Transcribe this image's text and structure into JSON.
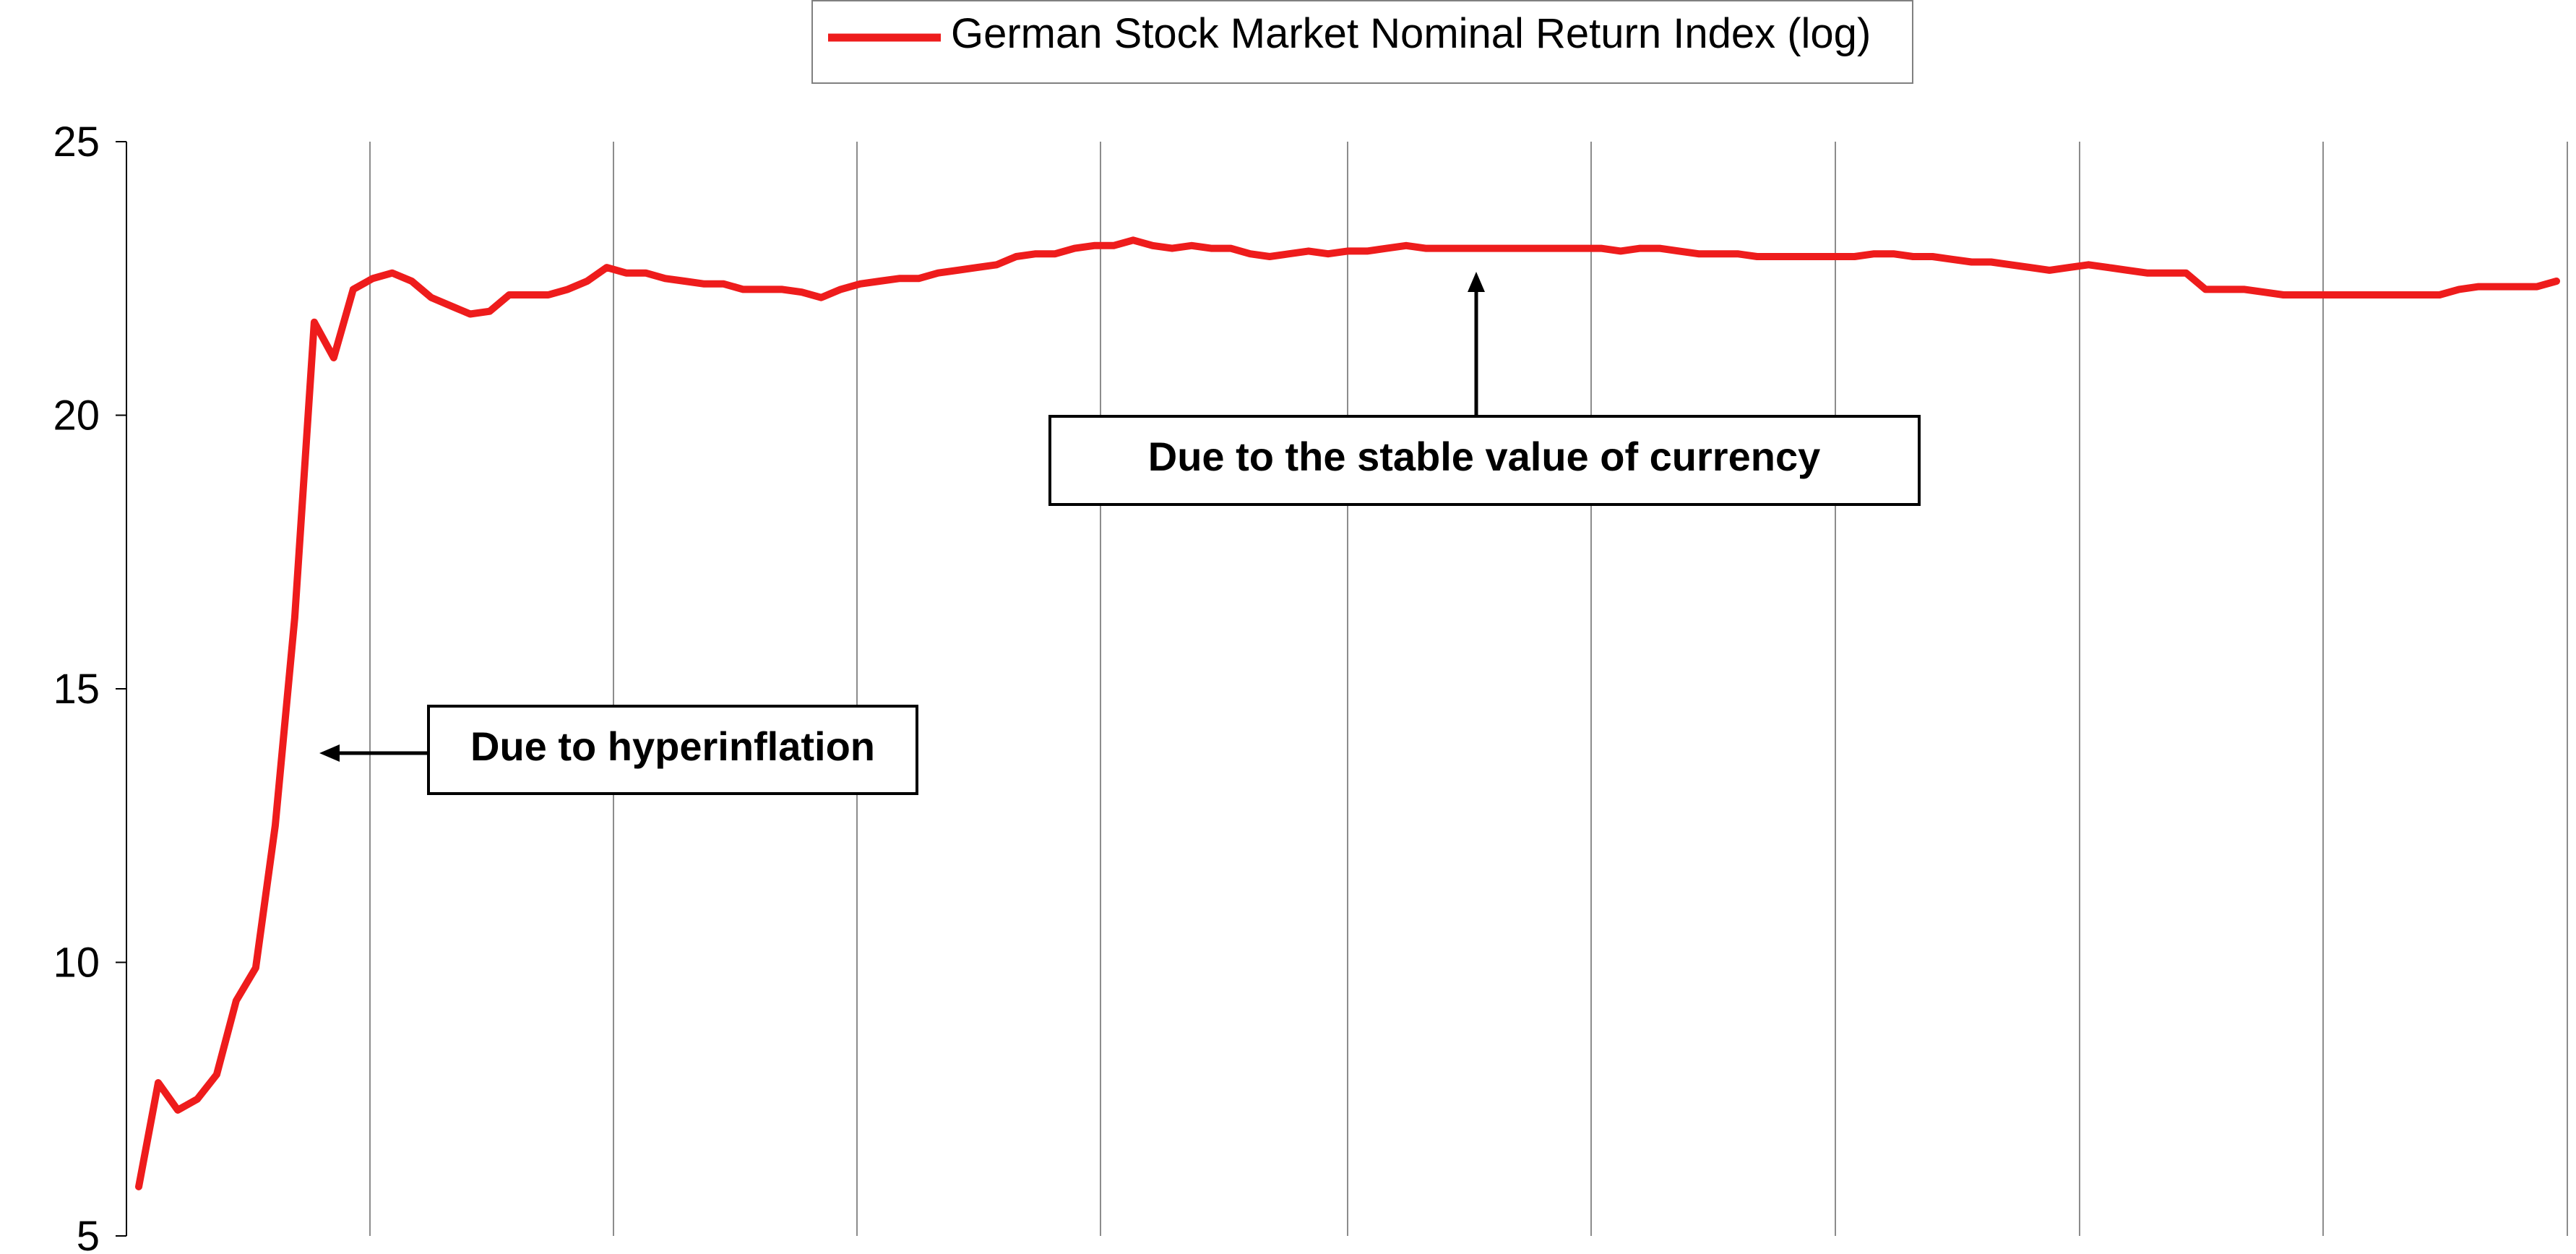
{
  "chart_data": {
    "type": "line",
    "title": "",
    "xlabel": "",
    "ylabel": "",
    "xlim": [
      0,
      124
    ],
    "ylim": [
      5,
      25
    ],
    "yticks": [
      "5",
      "10",
      "15",
      "20",
      "25"
    ],
    "grid": {
      "vertical": true,
      "horizontal": false
    },
    "legend": {
      "position": "top-center"
    },
    "series": [
      {
        "name": "German Stock Market Nominal Return Index (log)",
        "color": "#ee1c1c",
        "x": [
          0,
          1,
          2,
          3,
          4,
          5,
          6,
          7,
          8,
          9,
          10,
          11,
          12,
          13,
          14,
          15,
          16,
          17,
          18,
          19,
          20,
          21,
          22,
          23,
          24,
          25,
          26,
          27,
          28,
          29,
          30,
          31,
          32,
          33,
          34,
          35,
          36,
          37,
          38,
          39,
          40,
          41,
          42,
          43,
          44,
          45,
          46,
          47,
          48,
          49,
          50,
          51,
          52,
          53,
          54,
          55,
          56,
          57,
          58,
          59,
          60,
          61,
          62,
          63,
          64,
          65,
          66,
          67,
          68,
          69,
          70,
          71,
          72,
          73,
          74,
          75,
          76,
          77,
          78,
          79,
          80,
          81,
          82,
          83,
          84,
          85,
          86,
          87,
          88,
          89,
          90,
          91,
          92,
          93,
          94,
          95,
          96,
          97,
          98,
          99,
          100,
          101,
          102,
          103,
          104,
          105,
          106,
          107,
          108,
          109,
          110,
          111,
          112,
          113,
          114,
          115,
          116,
          117,
          118,
          119,
          120,
          121,
          122,
          123,
          124
        ],
        "values": [
          5.9,
          7.8,
          7.3,
          7.5,
          7.95,
          9.3,
          9.9,
          12.5,
          16.3,
          21.7,
          21.05,
          22.3,
          22.5,
          22.6,
          22.45,
          22.15,
          22.0,
          21.85,
          21.9,
          22.2,
          22.2,
          22.2,
          22.3,
          22.45,
          22.7,
          22.6,
          22.6,
          22.5,
          22.45,
          22.4,
          22.4,
          22.3,
          22.3,
          22.3,
          22.25,
          22.15,
          22.3,
          22.4,
          22.45,
          22.5,
          22.5,
          22.6,
          22.65,
          22.7,
          22.75,
          22.9,
          22.95,
          22.95,
          23.05,
          23.1,
          23.1,
          23.2,
          23.1,
          23.05,
          23.1,
          23.05,
          23.05,
          22.95,
          22.9,
          22.95,
          23.0,
          22.95,
          23.0,
          23.0,
          23.05,
          23.1,
          23.05,
          23.05,
          23.05,
          23.05,
          23.05,
          23.05,
          23.05,
          23.05,
          23.05,
          23.05,
          23.0,
          23.05,
          23.05,
          23.0,
          22.95,
          22.95,
          22.95,
          22.9,
          22.9,
          22.9,
          22.9,
          22.9,
          22.9,
          22.95,
          22.95,
          22.9,
          22.9,
          22.85,
          22.8,
          22.8,
          22.75,
          22.7,
          22.65,
          22.7,
          22.75,
          22.7,
          22.65,
          22.6,
          22.6,
          22.6,
          22.3,
          22.3,
          22.3,
          22.25,
          22.2,
          22.2,
          22.2,
          22.2,
          22.2,
          22.2,
          22.2,
          22.2,
          22.2,
          22.3,
          22.35,
          22.35,
          22.35,
          22.35,
          22.45
        ]
      }
    ],
    "annotations": [
      {
        "text": "Due to hyperinflation",
        "x": 9.5,
        "y": 13.9
      },
      {
        "text": "Due to the stable value of currency",
        "x": 68.5,
        "y": 22.6
      }
    ]
  }
}
